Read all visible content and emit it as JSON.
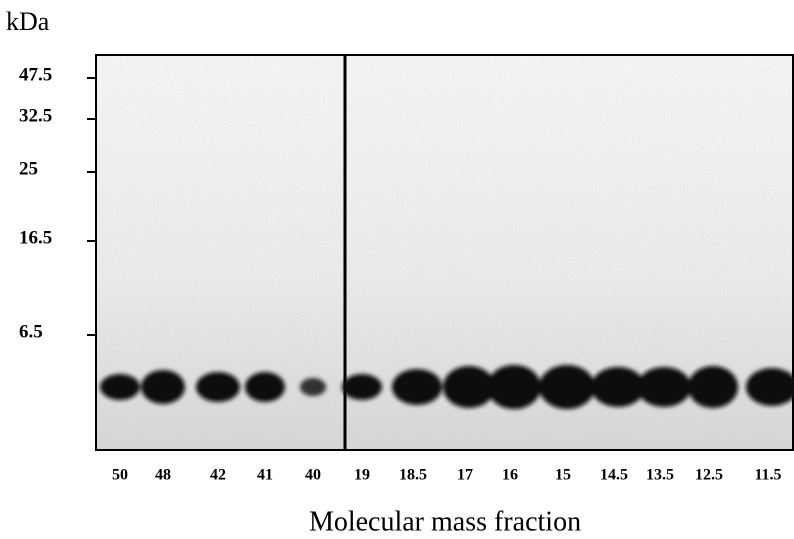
{
  "figure": {
    "y_unit": "kDa",
    "markers": [
      "47.5",
      "32.5",
      "25",
      "16.5",
      "6.5"
    ],
    "lanes": [
      "50",
      "48",
      "42",
      "41",
      "40",
      "19",
      "18.5",
      "17",
      "16",
      "15",
      "14.5",
      "13.5",
      "12.5",
      "11.5"
    ],
    "x_title": "Molecular mass fraction"
  }
}
